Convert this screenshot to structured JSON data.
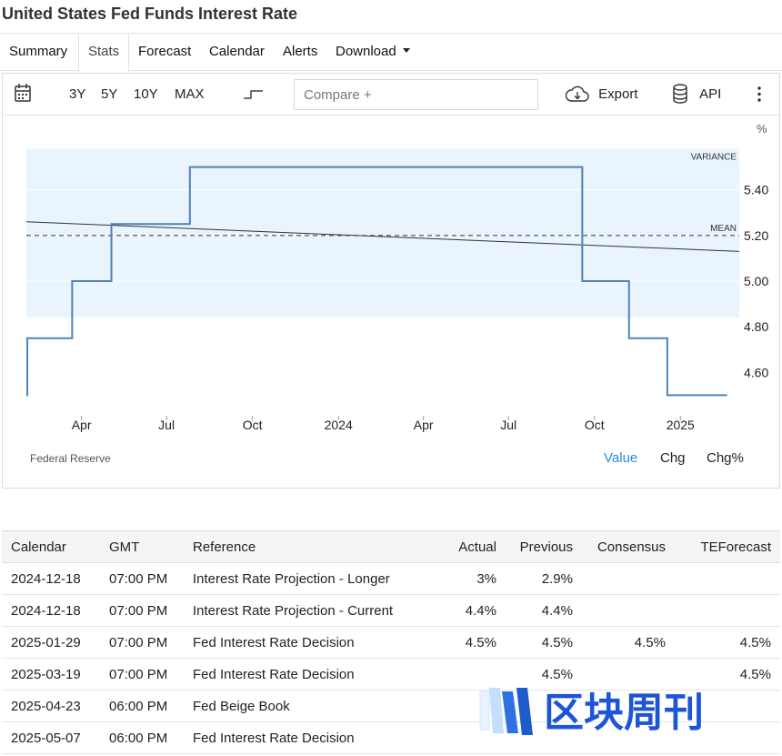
{
  "page_title": "United States Fed Funds Interest Rate",
  "tabs": [
    "Summary",
    "Stats",
    "Forecast",
    "Calendar",
    "Alerts",
    "Download"
  ],
  "active_tab": "Stats",
  "toolbar": {
    "ranges": [
      "3Y",
      "5Y",
      "10Y",
      "MAX"
    ],
    "compare_placeholder": "Compare +",
    "export_label": "Export",
    "api_label": "API"
  },
  "chart_data": {
    "type": "line",
    "step": true,
    "unit_label": "%",
    "x_tick_labels": [
      "Apr",
      "Jul",
      "Oct",
      "2024",
      "Apr",
      "Jul",
      "Oct",
      "2025"
    ],
    "x_ticks": [
      "2023-04-01",
      "2023-07-01",
      "2023-10-01",
      "2024-01-01",
      "2024-04-01",
      "2024-07-01",
      "2024-10-01",
      "2025-01-01"
    ],
    "xlim": [
      "2023-02-01",
      "2025-03-05"
    ],
    "ylim": [
      4.41,
      5.59
    ],
    "y_ticks": [
      4.6,
      4.8,
      5.0,
      5.2,
      5.4
    ],
    "y_tick_labels": [
      "4.60",
      "4.80",
      "5.00",
      "5.20",
      "5.40"
    ],
    "series": [
      {
        "color": "#4f82b6",
        "points": [
          {
            "x": "2023-02-01",
            "y": 4.5
          },
          {
            "x": "2023-02-02",
            "y": 4.75
          },
          {
            "x": "2023-03-22",
            "y": 5.0
          },
          {
            "x": "2023-05-03",
            "y": 5.25
          },
          {
            "x": "2023-07-26",
            "y": 5.5
          },
          {
            "x": "2024-09-18",
            "y": 5.0
          },
          {
            "x": "2024-11-07",
            "y": 4.75
          },
          {
            "x": "2024-12-18",
            "y": 4.5
          },
          {
            "x": "2025-02-20",
            "y": 4.5
          }
        ]
      }
    ],
    "mean": {
      "label": "MEAN",
      "value": 5.2
    },
    "variance_band": {
      "label": "VARIANCE",
      "low": 4.84,
      "high": 5.58
    },
    "trend": {
      "start": 5.26,
      "end": 5.13
    },
    "source": "Federal Reserve",
    "view_options": [
      "Value",
      "Chg",
      "Chg%"
    ],
    "selected_view": "Value"
  },
  "calendar": {
    "columns": [
      "Calendar",
      "GMT",
      "Reference",
      "Actual",
      "Previous",
      "Consensus",
      "TEForecast"
    ],
    "rows": [
      [
        "2024-12-18",
        "07:00 PM",
        "Interest Rate Projection - Longer",
        "3%",
        "2.9%",
        "",
        ""
      ],
      [
        "2024-12-18",
        "07:00 PM",
        "Interest Rate Projection - Current",
        "4.4%",
        "4.4%",
        "",
        ""
      ],
      [
        "2025-01-29",
        "07:00 PM",
        "Fed Interest Rate Decision",
        "4.5%",
        "4.5%",
        "4.5%",
        "4.5%"
      ],
      [
        "2025-03-19",
        "07:00 PM",
        "Fed Interest Rate Decision",
        "",
        "4.5%",
        "",
        "4.5%"
      ],
      [
        "2025-04-23",
        "06:00 PM",
        "Fed Beige Book",
        "",
        "",
        "",
        ""
      ],
      [
        "2025-05-07",
        "06:00 PM",
        "Fed Interest Rate Decision",
        "",
        "",
        "",
        ""
      ]
    ]
  },
  "watermark": "区块周刊"
}
